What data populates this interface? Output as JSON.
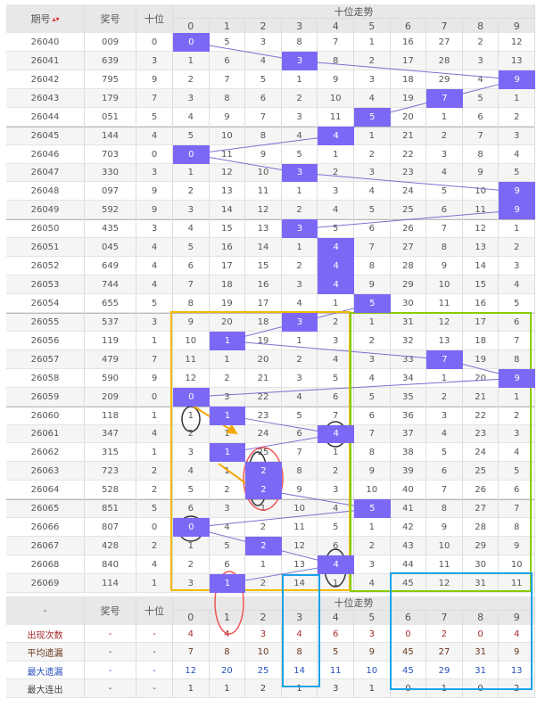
{
  "header": {
    "period": "期号",
    "number": "奖号",
    "tens": "十位",
    "trend": "十位走势",
    "digits": [
      "0",
      "1",
      "2",
      "3",
      "4",
      "5",
      "6",
      "7",
      "8",
      "9"
    ],
    "sort_icon": "sort-arrows-icon"
  },
  "rows": [
    {
      "period": "26040",
      "number": "009",
      "tens": 0,
      "miss": [
        0,
        5,
        3,
        8,
        7,
        1,
        16,
        27,
        2,
        12
      ]
    },
    {
      "period": "26041",
      "number": "639",
      "tens": 3,
      "miss": [
        1,
        6,
        4,
        3,
        8,
        2,
        17,
        28,
        3,
        13
      ]
    },
    {
      "period": "26042",
      "number": "795",
      "tens": 9,
      "miss": [
        2,
        7,
        5,
        1,
        9,
        3,
        18,
        29,
        4,
        9
      ]
    },
    {
      "period": "26043",
      "number": "179",
      "tens": 7,
      "miss": [
        3,
        8,
        6,
        2,
        10,
        4,
        19,
        7,
        5,
        1
      ]
    },
    {
      "period": "26044",
      "number": "051",
      "tens": 5,
      "miss": [
        4,
        9,
        7,
        3,
        11,
        5,
        20,
        1,
        6,
        2
      ]
    },
    {
      "period": "26045",
      "number": "144",
      "tens": 4,
      "miss": [
        5,
        10,
        8,
        4,
        4,
        1,
        21,
        2,
        7,
        3
      ]
    },
    {
      "period": "26046",
      "number": "703",
      "tens": 0,
      "miss": [
        0,
        11,
        9,
        5,
        1,
        2,
        22,
        3,
        8,
        4
      ]
    },
    {
      "period": "26047",
      "number": "330",
      "tens": 3,
      "miss": [
        1,
        12,
        10,
        3,
        2,
        3,
        23,
        4,
        9,
        5
      ]
    },
    {
      "period": "26048",
      "number": "097",
      "tens": 9,
      "miss": [
        2,
        13,
        11,
        1,
        3,
        4,
        24,
        5,
        10,
        9
      ]
    },
    {
      "period": "26049",
      "number": "592",
      "tens": 9,
      "miss": [
        3,
        14,
        12,
        2,
        4,
        5,
        25,
        6,
        11,
        9
      ]
    },
    {
      "period": "26050",
      "number": "435",
      "tens": 3,
      "miss": [
        4,
        15,
        13,
        3,
        5,
        6,
        26,
        7,
        12,
        1
      ]
    },
    {
      "period": "26051",
      "number": "045",
      "tens": 4,
      "miss": [
        5,
        16,
        14,
        1,
        4,
        7,
        27,
        8,
        13,
        2
      ]
    },
    {
      "period": "26052",
      "number": "649",
      "tens": 4,
      "miss": [
        6,
        17,
        15,
        2,
        4,
        8,
        28,
        9,
        14,
        3
      ]
    },
    {
      "period": "26053",
      "number": "744",
      "tens": 4,
      "miss": [
        7,
        18,
        16,
        3,
        4,
        9,
        29,
        10,
        15,
        4
      ]
    },
    {
      "period": "26054",
      "number": "655",
      "tens": 5,
      "miss": [
        8,
        19,
        17,
        4,
        1,
        5,
        30,
        11,
        16,
        5
      ]
    },
    {
      "period": "26055",
      "number": "537",
      "tens": 3,
      "miss": [
        9,
        20,
        18,
        3,
        2,
        1,
        31,
        12,
        17,
        6
      ]
    },
    {
      "period": "26056",
      "number": "119",
      "tens": 1,
      "miss": [
        10,
        1,
        19,
        1,
        3,
        2,
        32,
        13,
        18,
        7
      ]
    },
    {
      "period": "26057",
      "number": "479",
      "tens": 7,
      "miss": [
        11,
        1,
        20,
        2,
        4,
        3,
        33,
        7,
        19,
        8
      ]
    },
    {
      "period": "26058",
      "number": "590",
      "tens": 9,
      "miss": [
        12,
        2,
        21,
        3,
        5,
        4,
        34,
        1,
        20,
        9
      ]
    },
    {
      "period": "26059",
      "number": "209",
      "tens": 0,
      "miss": [
        0,
        3,
        22,
        4,
        6,
        5,
        35,
        2,
        21,
        1
      ]
    },
    {
      "period": "26060",
      "number": "118",
      "tens": 1,
      "miss": [
        1,
        1,
        23,
        5,
        7,
        6,
        36,
        3,
        22,
        2
      ]
    },
    {
      "period": "26061",
      "number": "347",
      "tens": 4,
      "miss": [
        2,
        1,
        24,
        6,
        4,
        7,
        37,
        4,
        23,
        3
      ]
    },
    {
      "period": "26062",
      "number": "315",
      "tens": 1,
      "miss": [
        3,
        1,
        25,
        7,
        1,
        8,
        38,
        5,
        24,
        4
      ]
    },
    {
      "period": "26063",
      "number": "723",
      "tens": 2,
      "miss": [
        4,
        1,
        2,
        8,
        2,
        9,
        39,
        6,
        25,
        5
      ]
    },
    {
      "period": "26064",
      "number": "528",
      "tens": 2,
      "miss": [
        5,
        2,
        2,
        9,
        3,
        10,
        40,
        7,
        26,
        6
      ]
    },
    {
      "period": "26065",
      "number": "851",
      "tens": 5,
      "miss": [
        6,
        3,
        1,
        10,
        4,
        5,
        41,
        8,
        27,
        7
      ]
    },
    {
      "period": "26066",
      "number": "807",
      "tens": 0,
      "miss": [
        0,
        4,
        2,
        11,
        5,
        1,
        42,
        9,
        28,
        8
      ]
    },
    {
      "period": "26067",
      "number": "428",
      "tens": 2,
      "miss": [
        1,
        5,
        2,
        12,
        6,
        2,
        43,
        10,
        29,
        9
      ]
    },
    {
      "period": "26068",
      "number": "840",
      "tens": 4,
      "miss": [
        2,
        6,
        1,
        13,
        4,
        3,
        44,
        11,
        30,
        10
      ]
    },
    {
      "period": "26069",
      "number": "114",
      "tens": 1,
      "miss": [
        3,
        1,
        2,
        14,
        1,
        4,
        45,
        12,
        31,
        11
      ]
    }
  ],
  "footer_header": {
    "period": "-",
    "number": "奖号",
    "tens": "十位",
    "trend": "十位走势"
  },
  "stats": [
    {
      "label": "出现次数",
      "number": "-",
      "tens": "-",
      "values": [
        4,
        4,
        3,
        4,
        6,
        3,
        0,
        2,
        0,
        4
      ],
      "color": "#a52a2a"
    },
    {
      "label": "平均遗漏",
      "number": "-",
      "tens": "-",
      "values": [
        7,
        8,
        10,
        8,
        5,
        9,
        45,
        27,
        31,
        9
      ],
      "color": "#6b3a1e"
    },
    {
      "label": "最大遗漏",
      "number": "-",
      "tens": "-",
      "values": [
        12,
        20,
        25,
        14,
        11,
        10,
        45,
        29,
        31,
        13
      ],
      "color": "#2a52be"
    },
    {
      "label": "最大连出",
      "number": "-",
      "tens": "-",
      "values": [
        1,
        1,
        2,
        1,
        3,
        1,
        0,
        1,
        0,
        2
      ],
      "color": "#444444"
    }
  ],
  "colors": {
    "highlight": "#7b68f5",
    "line": "#7b6fd0",
    "header_bg": "#e8e8e8",
    "alt_row": "#f5f5f5",
    "annot_yellow": "#f5b800",
    "annot_green": "#88cc00",
    "annot_blue": "#1aa3e8",
    "annot_red": "#ee5555",
    "annot_black": "#333333",
    "annot_arrow": "#f5a800"
  }
}
